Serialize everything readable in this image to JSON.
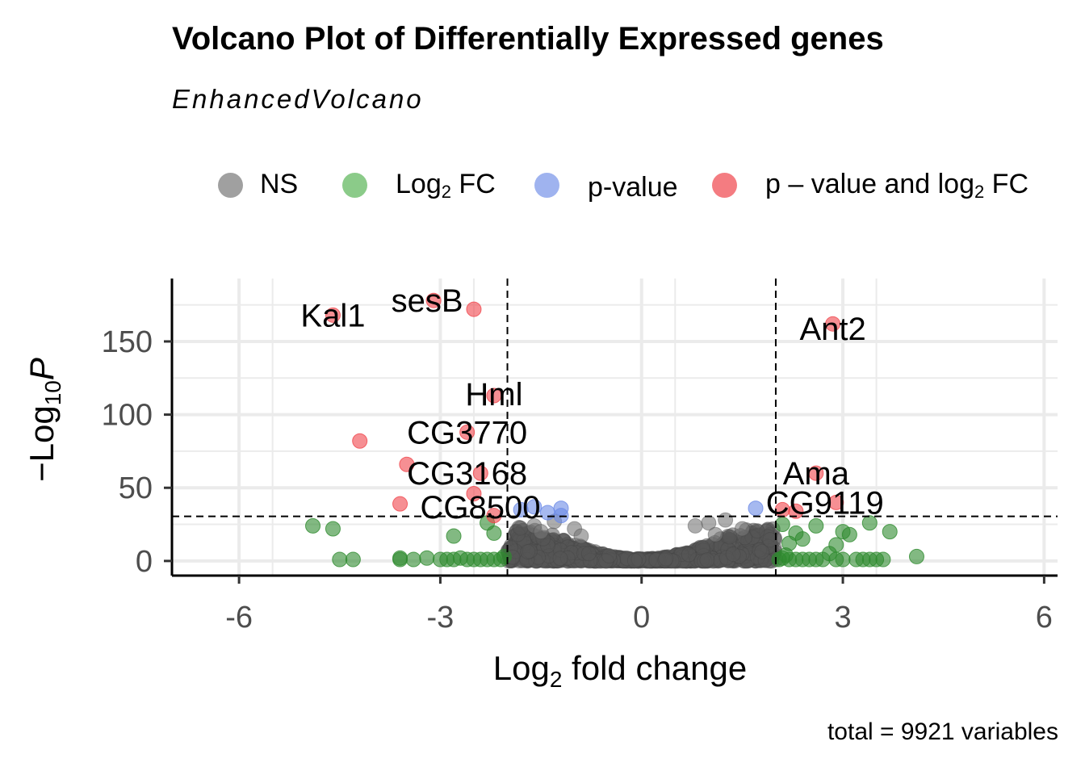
{
  "chart_data": {
    "type": "scatter",
    "title": "Volcano Plot of Differentially Expressed genes",
    "subtitle": "EnhancedVolcano",
    "caption": "total = 9921 variables",
    "xlabel_main": "Log",
    "xlabel_sub": "2",
    "xlabel_rest": " fold change",
    "ylabel_pre": "−Log",
    "ylabel_sub": "10",
    "ylabel_italic": "P",
    "xlim": [
      -7,
      6.2
    ],
    "ylim": [
      -10,
      193
    ],
    "xticks": [
      -6,
      -3,
      0,
      3,
      6
    ],
    "xtick_labels": [
      "-6",
      "-3",
      "0",
      "3",
      "6"
    ],
    "yticks": [
      0,
      50,
      100,
      150
    ],
    "ytick_labels": [
      "0",
      "50",
      "100",
      "150"
    ],
    "thresholds": {
      "log2fc": [
        -2,
        2
      ],
      "neg_log10_p": 30.5
    },
    "grid": true,
    "legend_position": "top",
    "legend": [
      {
        "key": "NS",
        "label_main": "NS",
        "label_sub": "",
        "label_rest": "",
        "color": "#808080"
      },
      {
        "key": "FC",
        "label_main": "Log",
        "label_sub": "2",
        "label_rest": " FC",
        "color": "#4daf4a"
      },
      {
        "key": "P",
        "label_main": "p-value",
        "label_sub": "",
        "label_rest": "",
        "color": "#6b8ae6"
      },
      {
        "key": "PFC",
        "label_main": "p – value and log",
        "label_sub": "2",
        "label_rest": " FC",
        "color": "#f0454b"
      }
    ],
    "series": [
      {
        "key": "PFC",
        "color": "#f0454b",
        "points": [
          [
            -3.1,
            178
          ],
          [
            -2.5,
            172
          ],
          [
            -4.6,
            168
          ],
          [
            2.85,
            162
          ],
          [
            -2.2,
            113
          ],
          [
            -4.2,
            82
          ],
          [
            -2.6,
            88
          ],
          [
            -3.5,
            66
          ],
          [
            -2.4,
            60
          ],
          [
            2.6,
            60
          ],
          [
            -2.5,
            46
          ],
          [
            -3.6,
            39
          ],
          [
            2.9,
            40
          ],
          [
            2.1,
            35
          ],
          [
            2.3,
            34
          ],
          [
            -2.2,
            31
          ]
        ]
      },
      {
        "key": "P",
        "color": "#6b8ae6",
        "points": [
          [
            -1.2,
            36
          ],
          [
            -1.6,
            37
          ],
          [
            -1.4,
            33
          ],
          [
            -1.2,
            31
          ],
          [
            1.7,
            36
          ],
          [
            -1.8,
            35
          ]
        ]
      },
      {
        "key": "FC",
        "color": "#2e8b2e",
        "points": [
          [
            -4.9,
            24
          ],
          [
            -4.6,
            22
          ],
          [
            -2.8,
            17
          ],
          [
            -2.2,
            19
          ],
          [
            -2.3,
            26
          ],
          [
            2.1,
            25
          ],
          [
            2.3,
            19
          ],
          [
            2.6,
            24
          ],
          [
            2.4,
            15
          ],
          [
            3.0,
            20
          ],
          [
            3.1,
            18
          ],
          [
            3.4,
            26
          ],
          [
            3.7,
            20
          ],
          [
            2.2,
            12
          ],
          [
            2.9,
            11
          ],
          [
            -4.5,
            1
          ],
          [
            -4.3,
            1
          ],
          [
            -3.6,
            2
          ],
          [
            -3.6,
            1
          ],
          [
            -3.2,
            2
          ],
          [
            -3.0,
            1
          ],
          [
            -2.9,
            1
          ],
          [
            -2.7,
            2
          ],
          [
            -2.6,
            1
          ],
          [
            -2.5,
            1
          ],
          [
            -2.4,
            1
          ],
          [
            -2.2,
            1
          ],
          [
            -2.1,
            1
          ],
          [
            -2.05,
            3
          ],
          [
            -3.4,
            1
          ],
          [
            -2.8,
            1
          ],
          [
            -2.3,
            1
          ],
          [
            2.05,
            1
          ],
          [
            2.1,
            2
          ],
          [
            2.2,
            1
          ],
          [
            2.3,
            1
          ],
          [
            2.4,
            1
          ],
          [
            2.5,
            1
          ],
          [
            2.6,
            1
          ],
          [
            2.7,
            1
          ],
          [
            2.9,
            1
          ],
          [
            3.0,
            1
          ],
          [
            3.2,
            1
          ],
          [
            3.3,
            1
          ],
          [
            3.5,
            1
          ],
          [
            3.6,
            1
          ],
          [
            4.1,
            3
          ],
          [
            2.15,
            4
          ],
          [
            2.8,
            5
          ],
          [
            3.4,
            1
          ]
        ]
      }
    ],
    "ns_cloud": {
      "x_range": [
        -2,
        2
      ],
      "max_y": 28,
      "n": 900
    },
    "labels": [
      {
        "text": "Kal1",
        "x": -4.6,
        "y": 168
      },
      {
        "text": "sesB",
        "x": -3.1,
        "y": 178
      },
      {
        "text": "Ant2",
        "x": 2.85,
        "y": 162
      },
      {
        "text": "Hml",
        "x": -2.2,
        "y": 113
      },
      {
        "text": "CG3770",
        "x": -2.6,
        "y": 88
      },
      {
        "text": "CG3168",
        "x": -2.6,
        "y": 60
      },
      {
        "text": "CG8500",
        "x": -2.5,
        "y": 37
      },
      {
        "text": "Ama",
        "x": 2.6,
        "y": 60
      },
      {
        "text": "CG9119",
        "x": 2.9,
        "y": 40
      }
    ]
  }
}
